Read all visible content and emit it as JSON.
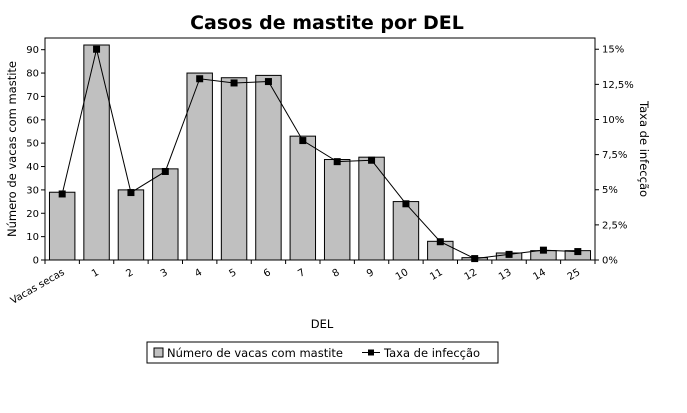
{
  "chart_data": {
    "type": "bar",
    "title": "Casos de mastite por DEL",
    "xlabel": "DEL",
    "ylabel": "Número de vacas com mastite",
    "y2label": "Taxa de infecção",
    "categories": [
      "Vacas secas",
      "1",
      "2",
      "3",
      "4",
      "5",
      "6",
      "7",
      "8",
      "9",
      "10",
      "11",
      "12",
      "13",
      "14",
      "25"
    ],
    "ylim": [
      0,
      95
    ],
    "yticks": [
      0,
      10,
      20,
      30,
      40,
      50,
      60,
      70,
      80,
      90
    ],
    "y2lim": [
      0,
      0.158
    ],
    "y2ticks": [
      0,
      0.025,
      0.05,
      0.075,
      0.1,
      0.125,
      0.15
    ],
    "y2ticklabels": [
      "0%",
      "2,5%",
      "5%",
      "7,5%",
      "10%",
      "12,5%",
      "15%"
    ],
    "series": [
      {
        "name": "Número de vacas com mastite",
        "kind": "bar",
        "axis": "left",
        "color": "#c0c0c0",
        "values": [
          29,
          92,
          30,
          39,
          80,
          78,
          79,
          53,
          43,
          44,
          25,
          8,
          1,
          3,
          4,
          4
        ]
      },
      {
        "name": "Taxa de infecção",
        "kind": "line",
        "axis": "right",
        "color": "#000000",
        "values": [
          0.047,
          0.15,
          0.048,
          0.063,
          0.129,
          0.126,
          0.127,
          0.085,
          0.07,
          0.071,
          0.04,
          0.013,
          0.001,
          0.004,
          0.007,
          0.006
        ]
      }
    ],
    "grid": false,
    "legend_position": "bottom"
  }
}
